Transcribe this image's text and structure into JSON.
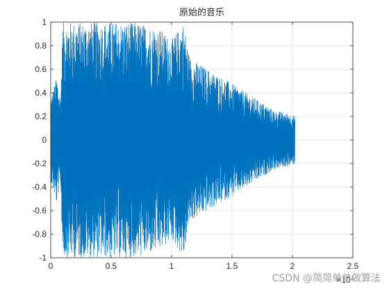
{
  "chart_data": {
    "type": "line",
    "title": "原始的音乐",
    "xlabel": "",
    "ylabel": "",
    "xlim": [
      0,
      2.5
    ],
    "ylim": [
      -1,
      1
    ],
    "x_scale_exponent_label": "×10⁴",
    "x_ticks": [
      "0",
      "0.5",
      "1",
      "1.5",
      "2",
      "2.5"
    ],
    "y_ticks": [
      "1",
      "0.8",
      "0.6",
      "0.4",
      "0.2",
      "0",
      "-0.2",
      "-0.4",
      "-0.6",
      "-0.8",
      "-1"
    ],
    "grid": true,
    "series_color": "#0072BD",
    "series": [
      {
        "description_points": "waveform amplitude envelope sampled along x (x in units of 10^4 samples)",
        "x": [
          0.0,
          0.05,
          0.08,
          0.1,
          0.15,
          0.3,
          0.5,
          0.7,
          0.9,
          1.0,
          1.1,
          1.15,
          1.3,
          1.5,
          1.7,
          1.85,
          2.0,
          2.02
        ],
        "envelope": [
          0.35,
          0.55,
          0.35,
          1.0,
          1.0,
          1.0,
          1.0,
          1.0,
          0.95,
          0.85,
          1.0,
          0.7,
          0.6,
          0.48,
          0.35,
          0.25,
          0.22,
          0.2
        ]
      }
    ]
  },
  "watermark": "CSDN @简简单单做算法"
}
